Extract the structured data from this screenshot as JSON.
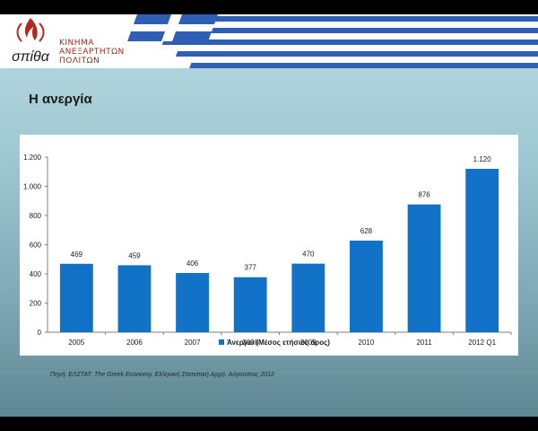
{
  "header": {
    "logo_text": "σπίθα",
    "org_lines": [
      "ΚΙΝΗΜΑ",
      "ΑΝΕΞΑΡΤΗΤΩΝ",
      "ΠΟΛΙΤΩΝ"
    ]
  },
  "slide": {
    "title": "Η ανεργία",
    "source": "Πηγή: ΕΛΣΤΑΤ. The Greek Economy. Ελληνική Στατιστική Αρχή. Αύγουστος 2012"
  },
  "colors": {
    "bar": "#1272c8",
    "axis": "#7f7f7f",
    "flag_blue": "#2f5fb4"
  },
  "chart_data": {
    "type": "bar",
    "title": "",
    "xlabel": "",
    "ylabel": "",
    "categories": [
      "2005",
      "2006",
      "2007",
      "2008",
      "2009",
      "2010",
      "2011",
      "2012 Q1"
    ],
    "series": [
      {
        "name": "Άνεργοι (Μέσος ετήσιος όρος)",
        "values": [
          469,
          459,
          406,
          377,
          470,
          628,
          876,
          1120
        ]
      }
    ],
    "data_labels": [
      "469",
      "459",
      "406",
      "377",
      "470",
      "628",
      "876",
      "1.120"
    ],
    "ylim": [
      0,
      1200
    ],
    "yticks": [
      0,
      200,
      400,
      600,
      800,
      1000,
      1200
    ],
    "ytick_labels": [
      "0",
      "200",
      "400",
      "600",
      "800",
      "1.000",
      "1.200"
    ],
    "grid": false,
    "legend_position": "bottom"
  }
}
